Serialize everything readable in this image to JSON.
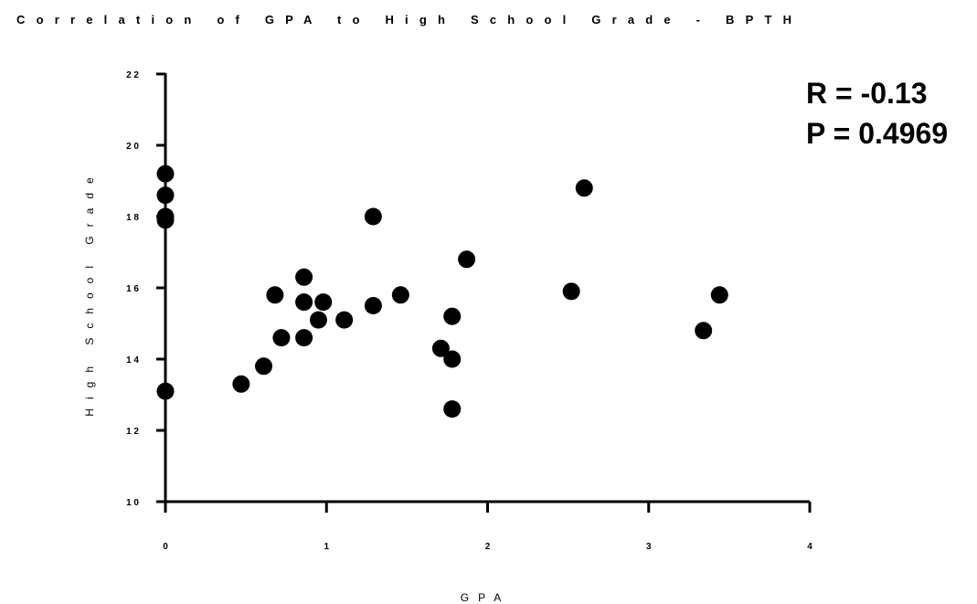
{
  "chart_data": {
    "type": "scatter",
    "title": "Correlation of GPA to High School Grade - BPTH",
    "xlabel": "GPA",
    "ylabel": "High School Grade",
    "xlim": [
      0,
      4
    ],
    "ylim": [
      10,
      22
    ],
    "x_ticks": [
      0,
      1,
      2,
      3,
      4
    ],
    "y_ticks": [
      10,
      12,
      14,
      16,
      18,
      20,
      22
    ],
    "x_tick_labels": [
      "0",
      "1",
      "2",
      "3",
      "4"
    ],
    "y_tick_labels": [
      "1 0",
      "1 2",
      "1 4",
      "1 6",
      "1 8",
      "2 0",
      "2 2"
    ],
    "grid": false,
    "marker_color": "#000000",
    "annotations": [
      "R = -0.13",
      "P = 0.4969"
    ],
    "points": [
      {
        "x": 0.0,
        "y": 19.2
      },
      {
        "x": 0.0,
        "y": 18.6
      },
      {
        "x": 0.0,
        "y": 18.0
      },
      {
        "x": 0.0,
        "y": 17.9
      },
      {
        "x": 0.0,
        "y": 13.1
      },
      {
        "x": 0.47,
        "y": 13.3
      },
      {
        "x": 0.61,
        "y": 13.8
      },
      {
        "x": 0.68,
        "y": 15.8
      },
      {
        "x": 0.72,
        "y": 14.6
      },
      {
        "x": 0.86,
        "y": 16.3
      },
      {
        "x": 0.86,
        "y": 15.6
      },
      {
        "x": 0.86,
        "y": 14.6
      },
      {
        "x": 0.95,
        "y": 15.1
      },
      {
        "x": 0.98,
        "y": 15.6
      },
      {
        "x": 1.11,
        "y": 15.1
      },
      {
        "x": 1.29,
        "y": 18.0
      },
      {
        "x": 1.29,
        "y": 15.5
      },
      {
        "x": 1.46,
        "y": 15.8
      },
      {
        "x": 1.71,
        "y": 14.3
      },
      {
        "x": 1.78,
        "y": 15.2
      },
      {
        "x": 1.78,
        "y": 14.0
      },
      {
        "x": 1.78,
        "y": 12.6
      },
      {
        "x": 1.87,
        "y": 16.8
      },
      {
        "x": 2.52,
        "y": 15.9
      },
      {
        "x": 2.6,
        "y": 18.8
      },
      {
        "x": 3.34,
        "y": 14.8
      },
      {
        "x": 3.44,
        "y": 15.8
      }
    ]
  }
}
